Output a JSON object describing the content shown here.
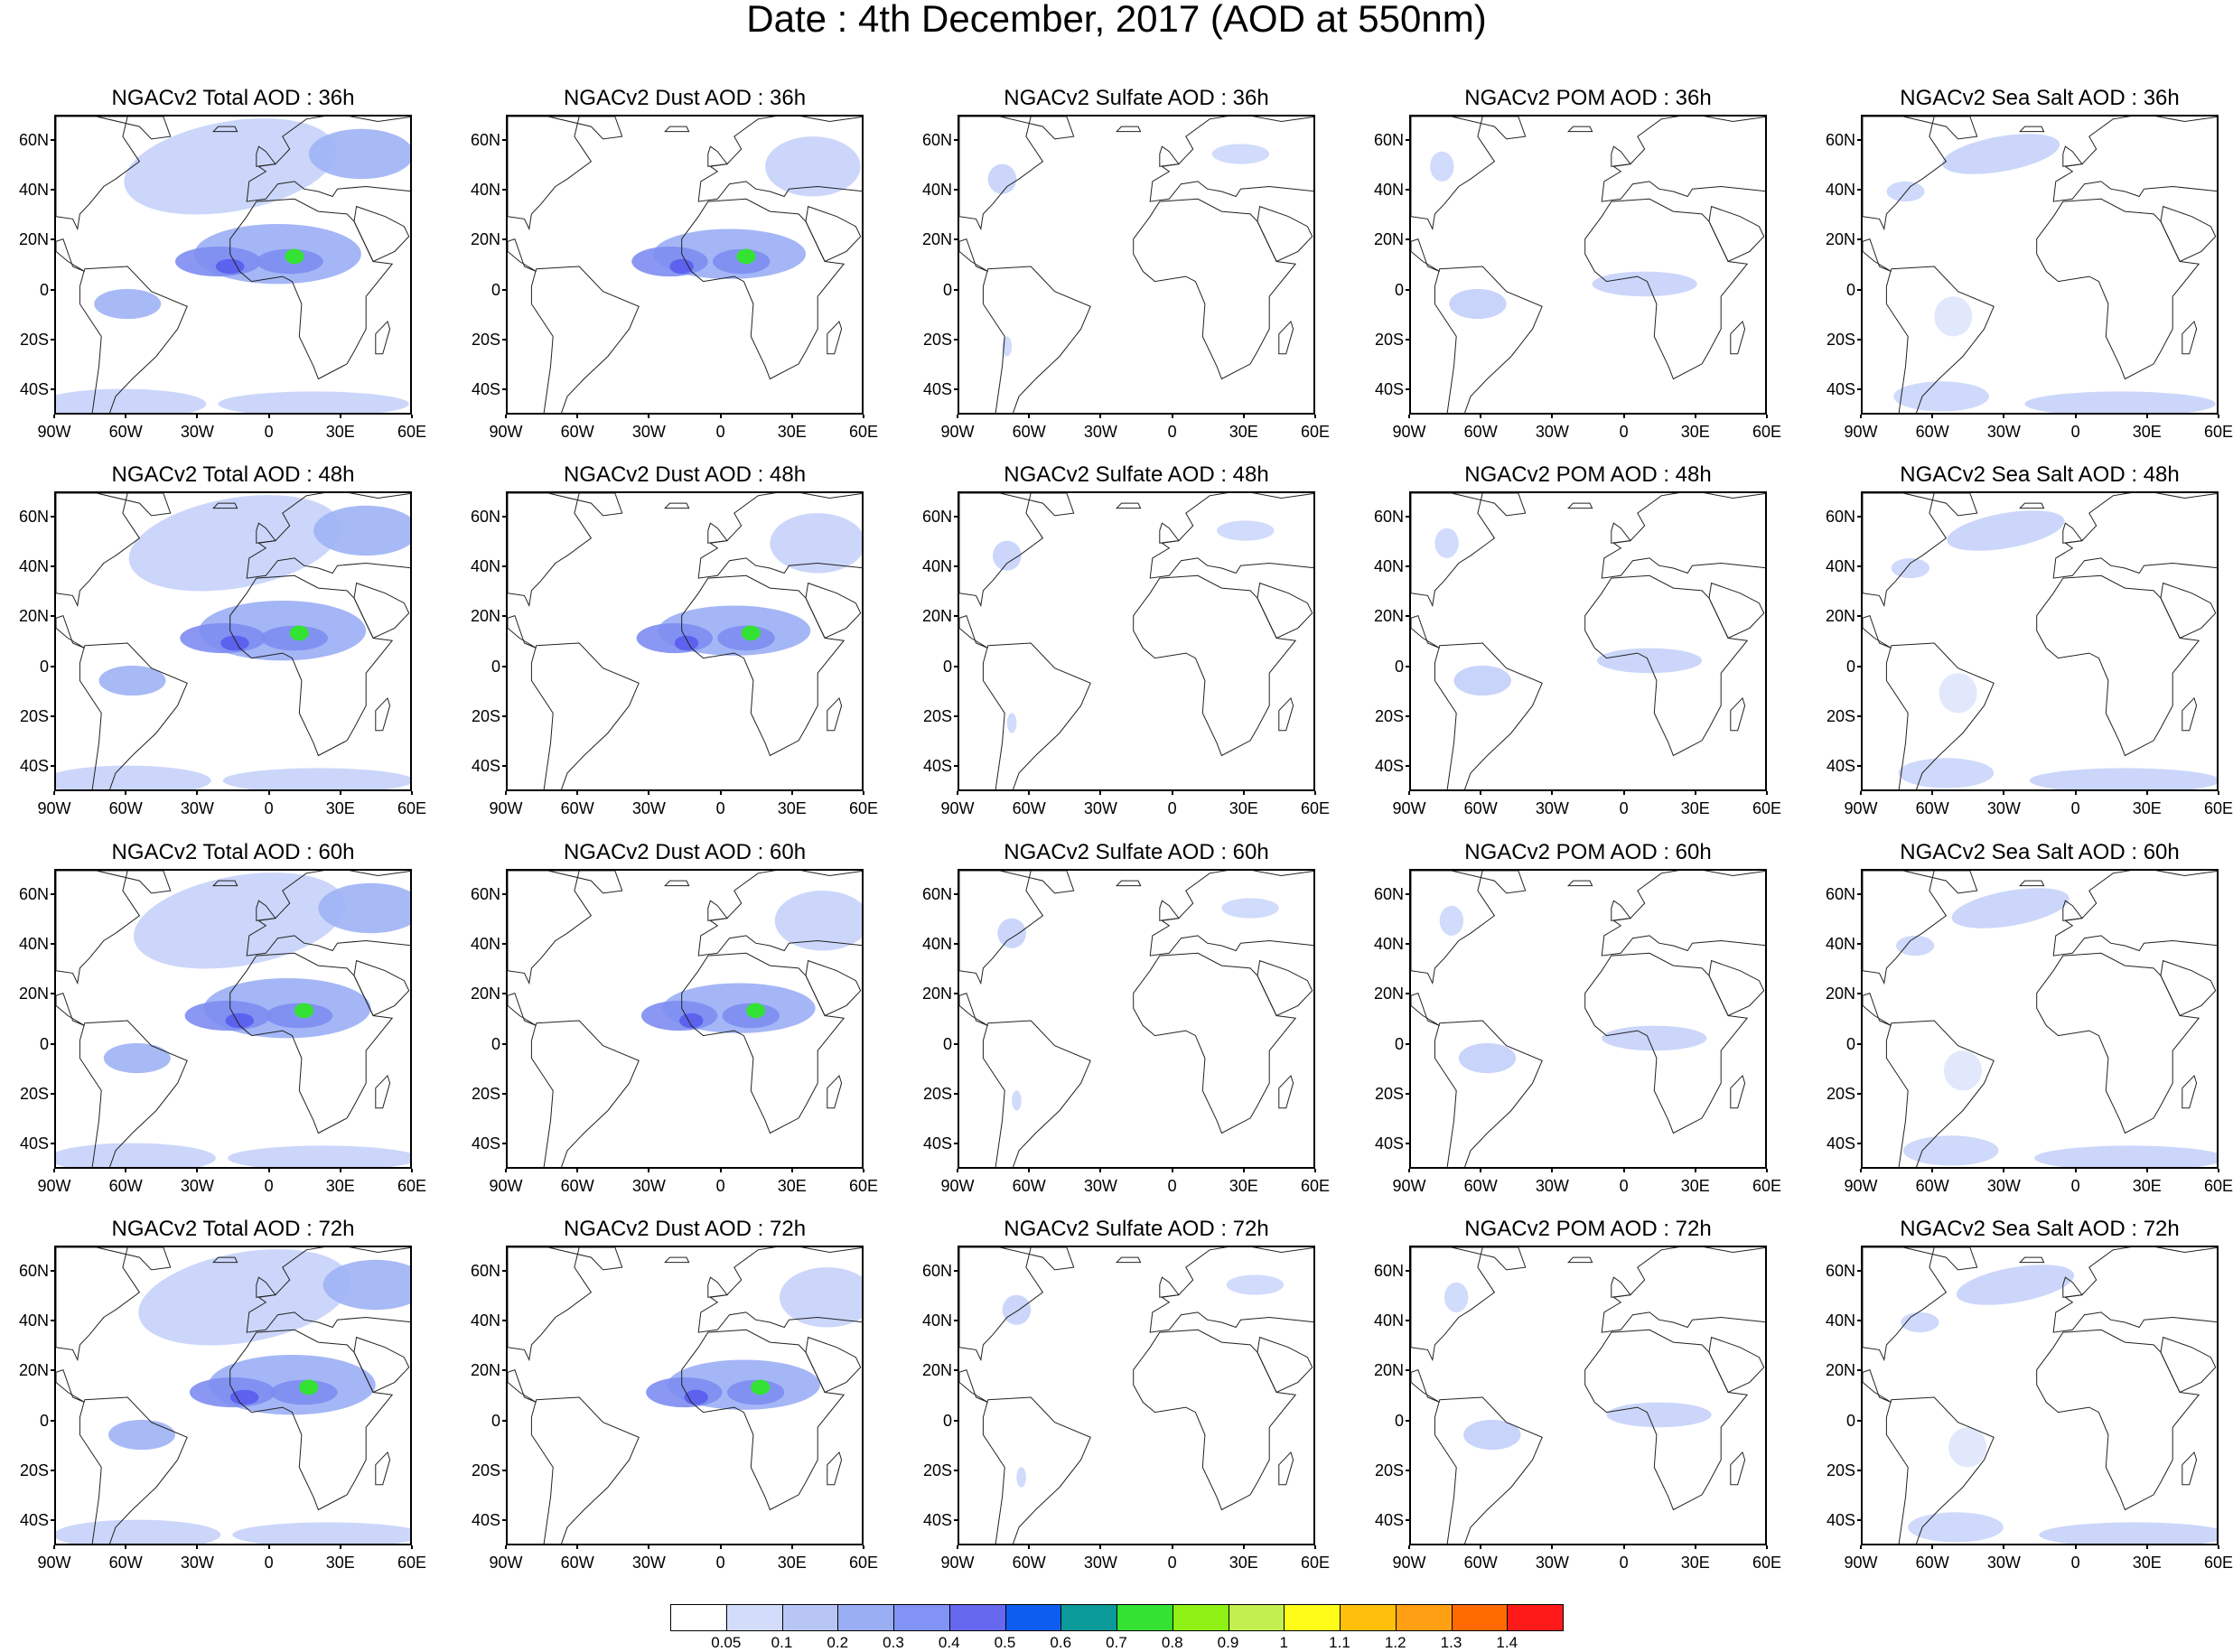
{
  "title": "Date : 4th December, 2017 (AOD at 550nm)",
  "lat_ticks": [
    "60N",
    "40N",
    "20N",
    "0",
    "20S",
    "40S"
  ],
  "lat_values": [
    60,
    40,
    20,
    0,
    -20,
    -40
  ],
  "lon_ticks": [
    "90W",
    "60W",
    "30W",
    "0",
    "30E",
    "60E"
  ],
  "lon_values": [
    -90,
    -60,
    -30,
    0,
    30,
    60
  ],
  "map_extent": {
    "lon": [
      -90,
      60
    ],
    "lat": [
      -50,
      70
    ]
  },
  "rows": [
    {
      "hour": "36h",
      "titles": [
        "NGACv2 Total AOD : 36h",
        "NGACv2 Dust AOD : 36h",
        "NGACv2 Sulfate AOD : 36h",
        "NGACv2 POM AOD : 36h",
        "NGACv2 Sea Salt AOD : 36h"
      ]
    },
    {
      "hour": "48h",
      "titles": [
        "NGACv2 Total AOD : 48h",
        "NGACv2 Dust AOD : 48h",
        "NGACv2 Sulfate AOD : 48h",
        "NGACv2 POM AOD : 48h",
        "NGACv2 Sea Salt AOD : 48h"
      ]
    },
    {
      "hour": "60h",
      "titles": [
        "NGACv2 Total AOD : 60h",
        "NGACv2 Dust AOD : 60h",
        "NGACv2 Sulfate AOD : 60h",
        "NGACv2 POM AOD : 60h",
        "NGACv2 Sea Salt AOD : 60h"
      ]
    },
    {
      "hour": "72h",
      "titles": [
        "NGACv2 Total AOD : 72h",
        "NGACv2 Dust AOD : 72h",
        "NGACv2 Sulfate AOD : 72h",
        "NGACv2 POM AOD : 72h",
        "NGACv2 Sea Salt  AOD : 72h"
      ]
    }
  ],
  "species": [
    "total",
    "dust",
    "sulfate",
    "pom",
    "seasalt"
  ],
  "colorbar": {
    "colors": [
      "#ffffff",
      "#d3dcfa",
      "#b8c6f6",
      "#9aaef4",
      "#8194f5",
      "#6668f0",
      "#0d5ef0",
      "#0b9a9a",
      "#33e233",
      "#8ff016",
      "#c3f050",
      "#fffc1a",
      "#ffc00c",
      "#ff9f14",
      "#ff6a00",
      "#ff1a1a"
    ],
    "labels": [
      "0.05",
      "0.1",
      "0.2",
      "0.3",
      "0.4",
      "0.5",
      "0.6",
      "0.7",
      "0.8",
      "0.9",
      "1",
      "1.1",
      "1.2",
      "1.3",
      "1.4"
    ]
  },
  "plume_colors": {
    "light": "#c5d2fa",
    "medium": "#9fb2f5",
    "strong": "#7d8df2",
    "deep": "#5c61ee",
    "hot": "#33e233"
  }
}
